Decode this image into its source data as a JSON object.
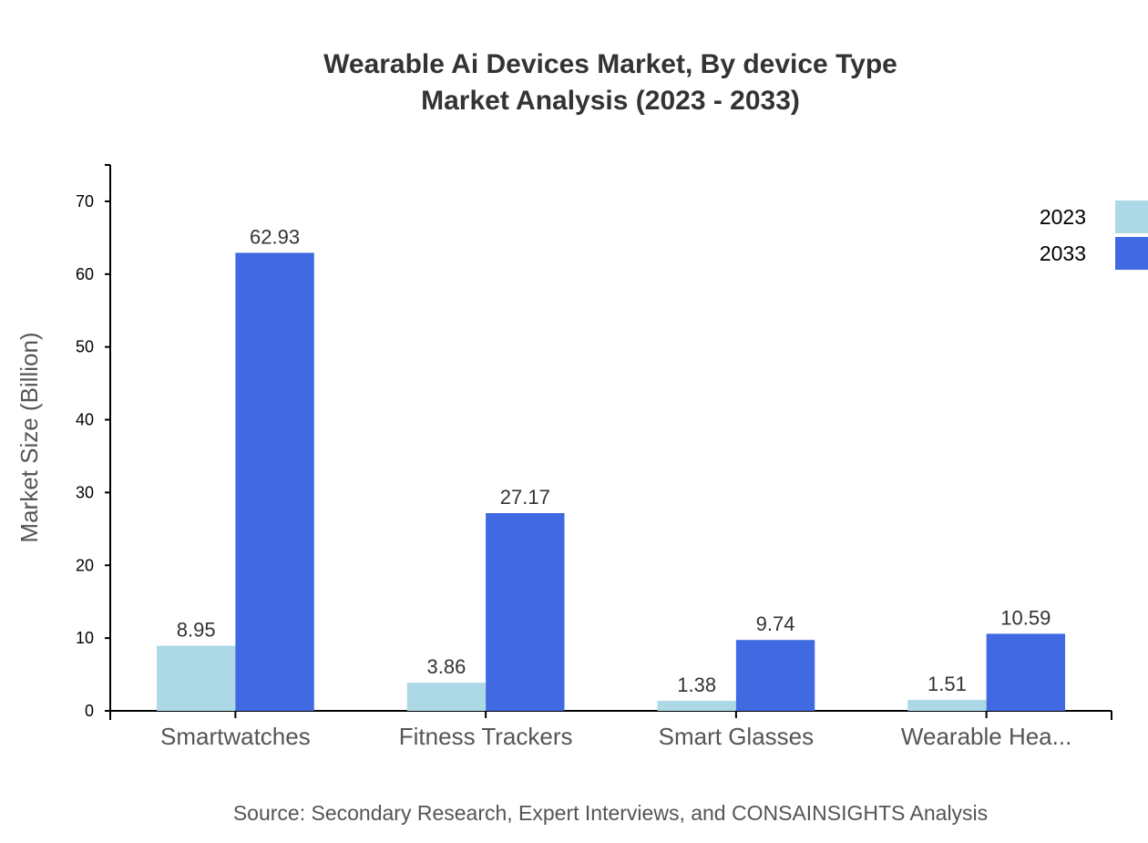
{
  "chart_data": {
    "type": "bar",
    "title": "Wearable Ai Devices Market, By device Type",
    "subtitle": "Market Analysis (2023 - 2033)",
    "xlabel": "",
    "ylabel": "Market Size (Billion)",
    "ylim": [
      0,
      75
    ],
    "yticks": [
      0,
      10,
      20,
      30,
      40,
      50,
      60,
      70
    ],
    "grid": false,
    "legend_placement": "top-right",
    "categories": [
      "Smartwatches",
      "Fitness Trackers",
      "Smart Glasses",
      "Wearable Hea..."
    ],
    "series": [
      {
        "name": "2023",
        "color": "#add8e6",
        "values": [
          8.95,
          3.86,
          1.38,
          1.51
        ]
      },
      {
        "name": "2033",
        "color": "#4169e1",
        "values": [
          62.93,
          27.17,
          9.74,
          10.59
        ]
      }
    ],
    "source": "Source: Secondary Research, Expert Interviews, and CONSAINSIGHTS Analysis"
  }
}
